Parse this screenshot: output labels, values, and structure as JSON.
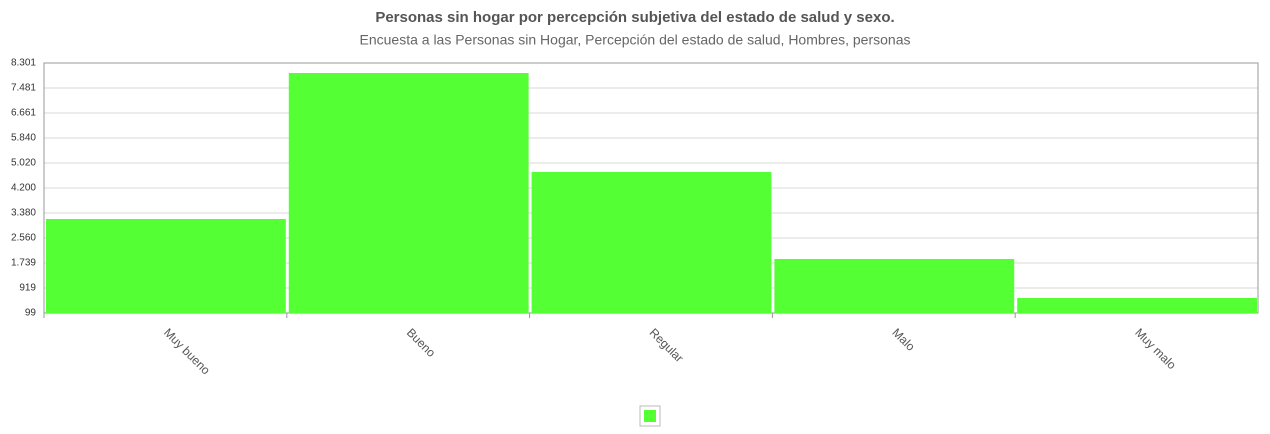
{
  "chart_data": {
    "type": "bar",
    "title": "Personas sin hogar por percepción subjetiva del estado de salud y sexo.",
    "subtitle": "Encuesta a las Personas sin Hogar, Percepción del estado de salud, Hombres, personas",
    "categories": [
      "Muy bueno",
      "Bueno",
      "Regular",
      "Malo",
      "Muy malo"
    ],
    "values": [
      3183,
      7973,
      4725,
      1871,
      591
    ],
    "color": "#54ff33",
    "ylim": [
      99,
      8301
    ],
    "yticks": [
      99,
      919,
      {
        "value": 1739,
        "label": "1.739"
      },
      {
        "value": 2560,
        "label": "2.560"
      },
      {
        "value": 3380,
        "label": "3.380"
      },
      {
        "value": 4200,
        "label": "4.200"
      },
      {
        "value": 5020,
        "label": "5.020"
      },
      {
        "value": 5840,
        "label": "5.840"
      },
      {
        "value": 6661,
        "label": "6.661"
      },
      {
        "value": 7481,
        "label": "7.481"
      },
      {
        "value": 8301,
        "label": "8.301"
      }
    ],
    "grid": true
  }
}
